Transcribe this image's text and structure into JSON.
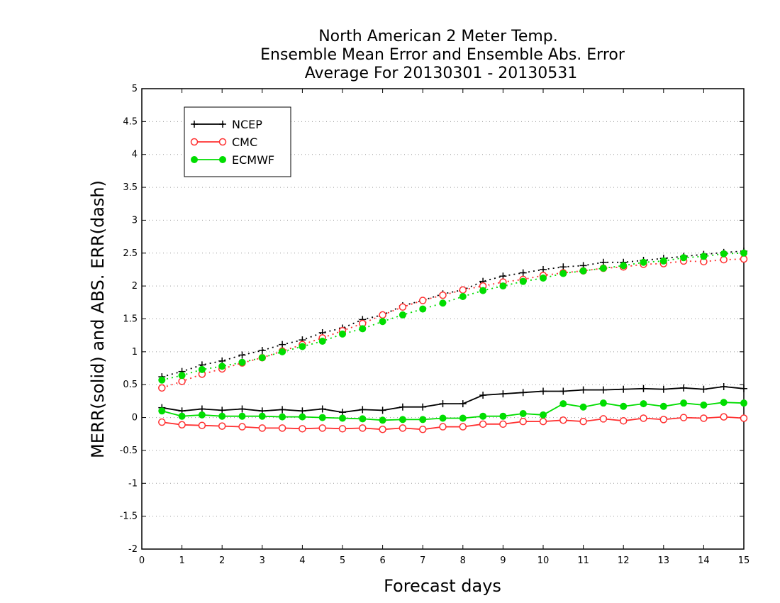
{
  "chart_data": {
    "type": "line",
    "title": [
      "North American 2 Meter Temp.",
      "Ensemble Mean Error and Ensemble Abs. Error",
      "Average For 20130301 - 20130531"
    ],
    "xlabel": "Forecast days",
    "ylabel": "MERR(solid) and ABS. ERR(dash)",
    "xlim": [
      0,
      15
    ],
    "ylim": [
      -2,
      5
    ],
    "xticks": [
      "0",
      "1",
      "2",
      "3",
      "4",
      "5",
      "6",
      "7",
      "8",
      "9",
      "10",
      "11",
      "12",
      "13",
      "14",
      "15"
    ],
    "yticks": [
      "-2",
      "-1.5",
      "-1",
      "-0.5",
      "0",
      "0.5",
      "1",
      "1.5",
      "2",
      "2.5",
      "3",
      "3.5",
      "4",
      "4.5",
      "5"
    ],
    "grid": "horizontal dotted",
    "legend_position": "top-left",
    "x": [
      0.5,
      1,
      1.5,
      2,
      2.5,
      3,
      3.5,
      4,
      4.5,
      5,
      5.5,
      6,
      6.5,
      7,
      7.5,
      8,
      8.5,
      9,
      9.5,
      10,
      10.5,
      11,
      11.5,
      12,
      12.5,
      13,
      13.5,
      14,
      14.5,
      15
    ],
    "series": [
      {
        "name": "NCEP",
        "color": "#000000",
        "marker": "plus",
        "mean_error": [
          0.15,
          0.1,
          0.13,
          0.11,
          0.13,
          0.1,
          0.12,
          0.1,
          0.13,
          0.08,
          0.12,
          0.11,
          0.16,
          0.16,
          0.21,
          0.21,
          0.34,
          0.36,
          0.38,
          0.4,
          0.4,
          0.42,
          0.42,
          0.43,
          0.44,
          0.43,
          0.45,
          0.43,
          0.47,
          0.44
        ],
        "abs_error": [
          0.62,
          0.7,
          0.8,
          0.86,
          0.95,
          1.02,
          1.11,
          1.18,
          1.29,
          1.36,
          1.49,
          1.56,
          1.7,
          1.78,
          1.88,
          1.94,
          2.07,
          2.15,
          2.2,
          2.25,
          2.29,
          2.31,
          2.36,
          2.36,
          2.39,
          2.42,
          2.45,
          2.48,
          2.51,
          2.53
        ]
      },
      {
        "name": "CMC",
        "color": "#ff3030",
        "marker": "open-circle",
        "mean_error": [
          -0.07,
          -0.11,
          -0.12,
          -0.13,
          -0.14,
          -0.16,
          -0.16,
          -0.17,
          -0.16,
          -0.17,
          -0.16,
          -0.18,
          -0.16,
          -0.18,
          -0.14,
          -0.14,
          -0.1,
          -0.1,
          -0.06,
          -0.06,
          -0.04,
          -0.06,
          -0.02,
          -0.05,
          -0.01,
          -0.03,
          0.0,
          -0.01,
          0.01,
          -0.01
        ],
        "abs_error": [
          0.45,
          0.55,
          0.66,
          0.74,
          0.83,
          0.91,
          1.01,
          1.11,
          1.21,
          1.32,
          1.43,
          1.56,
          1.68,
          1.78,
          1.86,
          1.94,
          2.0,
          2.06,
          2.1,
          2.16,
          2.2,
          2.23,
          2.27,
          2.29,
          2.33,
          2.34,
          2.38,
          2.37,
          2.4,
          2.41
        ]
      },
      {
        "name": "ECMWF",
        "color": "#00dd00",
        "marker": "filled-circle",
        "mean_error": [
          0.1,
          0.02,
          0.04,
          0.02,
          0.02,
          0.02,
          0.01,
          0.01,
          0.0,
          -0.01,
          -0.02,
          -0.04,
          -0.03,
          -0.03,
          -0.01,
          -0.01,
          0.02,
          0.02,
          0.06,
          0.04,
          0.21,
          0.16,
          0.22,
          0.17,
          0.21,
          0.17,
          0.22,
          0.19,
          0.23,
          0.22
        ],
        "abs_error": [
          0.57,
          0.64,
          0.73,
          0.78,
          0.84,
          0.91,
          1.0,
          1.08,
          1.16,
          1.27,
          1.35,
          1.46,
          1.56,
          1.65,
          1.74,
          1.84,
          1.93,
          2.0,
          2.07,
          2.12,
          2.19,
          2.23,
          2.27,
          2.31,
          2.36,
          2.38,
          2.43,
          2.45,
          2.49,
          2.5
        ]
      }
    ]
  }
}
